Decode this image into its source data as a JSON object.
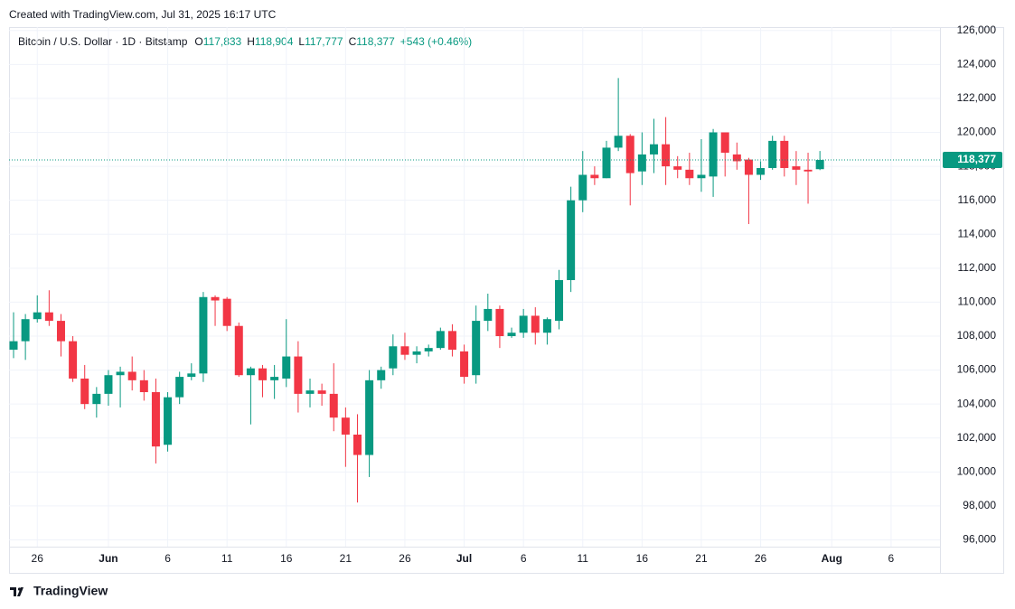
{
  "chart_data": {
    "type": "candlestick",
    "caption": "Created with TradingView.com, Jul 31, 2025 16:17 UTC",
    "title": "Bitcoin / U.S. Dollar · 1D · Bitstamp",
    "ohlc_legend": [
      {
        "label": "O",
        "value": "117,833"
      },
      {
        "label": "H",
        "value": "118,904"
      },
      {
        "label": "L",
        "value": "117,777"
      },
      {
        "label": "C",
        "value": "118,377"
      }
    ],
    "change": "+543 (+0.46%)",
    "footer": "TradingView",
    "up_color": "#089981",
    "down_color": "#f23645",
    "grid": true,
    "categories": [
      null,
      null,
      "26",
      null,
      null,
      null,
      null,
      null,
      "Jun",
      null,
      null,
      null,
      null,
      "6",
      null,
      null,
      null,
      null,
      "11",
      null,
      null,
      null,
      null,
      "16",
      null,
      null,
      null,
      null,
      "21",
      null,
      null,
      null,
      null,
      "26",
      null,
      null,
      null,
      null,
      "Jul",
      null,
      null,
      null,
      null,
      "6",
      null,
      null,
      null,
      null,
      "11",
      null,
      null,
      null,
      null,
      "16",
      null,
      null,
      null,
      null,
      "21",
      null,
      null,
      null,
      null,
      "26",
      null,
      null,
      null,
      null,
      null,
      "Aug",
      null,
      null,
      null,
      null,
      "6",
      null,
      null,
      null
    ],
    "open": [
      107200,
      107700,
      109000,
      109400,
      108900,
      107700,
      105500,
      104000,
      104600,
      105700,
      105900,
      105400,
      104700,
      101600,
      104400,
      105600,
      105800,
      110300,
      110200,
      108600,
      105700,
      106100,
      105400,
      105500,
      106800,
      104600,
      104800,
      104600,
      103200,
      102200,
      101000,
      105400,
      106100,
      107400,
      106900,
      107100,
      107300,
      108300,
      107100,
      105700,
      108900,
      109600,
      108000,
      108200,
      109200,
      108200,
      108900,
      111300,
      116000,
      117500,
      117300,
      119100,
      119800,
      117700,
      118700,
      119300,
      118000,
      117800,
      117300,
      117400,
      120000,
      118700,
      118400,
      117500,
      117900,
      119500,
      118000,
      117800,
      117833,
      null,
      null,
      null,
      null,
      null,
      null,
      null,
      null,
      null
    ],
    "high": [
      109400,
      109300,
      110400,
      110700,
      109300,
      108000,
      106300,
      105000,
      106000,
      106200,
      106800,
      106000,
      105500,
      104700,
      105900,
      106400,
      110600,
      110400,
      110300,
      108800,
      106200,
      106300,
      106300,
      109000,
      107700,
      105500,
      105200,
      106400,
      103800,
      103400,
      106000,
      106200,
      108100,
      108200,
      107400,
      107500,
      108500,
      108700,
      107500,
      109800,
      110500,
      109800,
      108500,
      109600,
      109700,
      109100,
      111900,
      116800,
      118900,
      118000,
      119500,
      123200,
      119900,
      120000,
      120800,
      120900,
      118600,
      118800,
      119600,
      120200,
      120000,
      119400,
      118500,
      118300,
      119800,
      119800,
      118900,
      118800,
      118904,
      null,
      null,
      null,
      null,
      null,
      null,
      null,
      null,
      null
    ],
    "low": [
      106700,
      106600,
      108800,
      108600,
      106800,
      105300,
      103700,
      103200,
      103900,
      103800,
      104800,
      104200,
      100500,
      101200,
      104000,
      105400,
      105300,
      108600,
      108300,
      105600,
      102800,
      104400,
      104300,
      105000,
      103500,
      103800,
      103900,
      102400,
      100300,
      98200,
      99700,
      104900,
      105700,
      106600,
      106400,
      106800,
      107200,
      106800,
      105200,
      105200,
      108300,
      107300,
      107900,
      107900,
      107500,
      107500,
      108400,
      110600,
      115300,
      116900,
      117300,
      118900,
      115700,
      116900,
      117600,
      116900,
      117300,
      116900,
      116500,
      116200,
      117400,
      117800,
      114600,
      117200,
      117800,
      117400,
      116900,
      115800,
      117777,
      null,
      null,
      null,
      null,
      null,
      null,
      null,
      null,
      null
    ],
    "close": [
      107700,
      109000,
      109400,
      108900,
      107700,
      105500,
      104000,
      104600,
      105700,
      105900,
      105400,
      104700,
      101500,
      104400,
      105600,
      105800,
      110300,
      110100,
      108600,
      105700,
      106100,
      105400,
      105600,
      106800,
      104600,
      104800,
      104600,
      103200,
      102200,
      101000,
      105400,
      106000,
      107400,
      106900,
      107100,
      107300,
      108300,
      107200,
      105600,
      108900,
      109600,
      108000,
      108200,
      109200,
      108200,
      109000,
      111300,
      116000,
      117500,
      117300,
      119100,
      119800,
      117600,
      118700,
      119300,
      118000,
      117800,
      117300,
      117500,
      120000,
      118800,
      118300,
      117500,
      117900,
      119500,
      117900,
      117800,
      117700,
      118377,
      null,
      null,
      null,
      null,
      null,
      null,
      null,
      null,
      null
    ],
    "last_price": {
      "value": 118377,
      "label": "118,377"
    },
    "ylim": [
      95600,
      126200
    ],
    "yticks": [
      {
        "value": 96000,
        "label": "96,000"
      },
      {
        "value": 98000,
        "label": "98,000"
      },
      {
        "value": 100000,
        "label": "100,000"
      },
      {
        "value": 102000,
        "label": "102,000"
      },
      {
        "value": 104000,
        "label": "104,000"
      },
      {
        "value": 106000,
        "label": "106,000"
      },
      {
        "value": 108000,
        "label": "108,000"
      },
      {
        "value": 110000,
        "label": "110,000"
      },
      {
        "value": 112000,
        "label": "112,000"
      },
      {
        "value": 114000,
        "label": "114,000"
      },
      {
        "value": 116000,
        "label": "116,000"
      },
      {
        "value": 118000,
        "label": "118,000"
      },
      {
        "value": 120000,
        "label": "120,000"
      },
      {
        "value": 122000,
        "label": "122,000"
      },
      {
        "value": 124000,
        "label": "124,000"
      },
      {
        "value": 126000,
        "label": "126,000"
      }
    ]
  }
}
